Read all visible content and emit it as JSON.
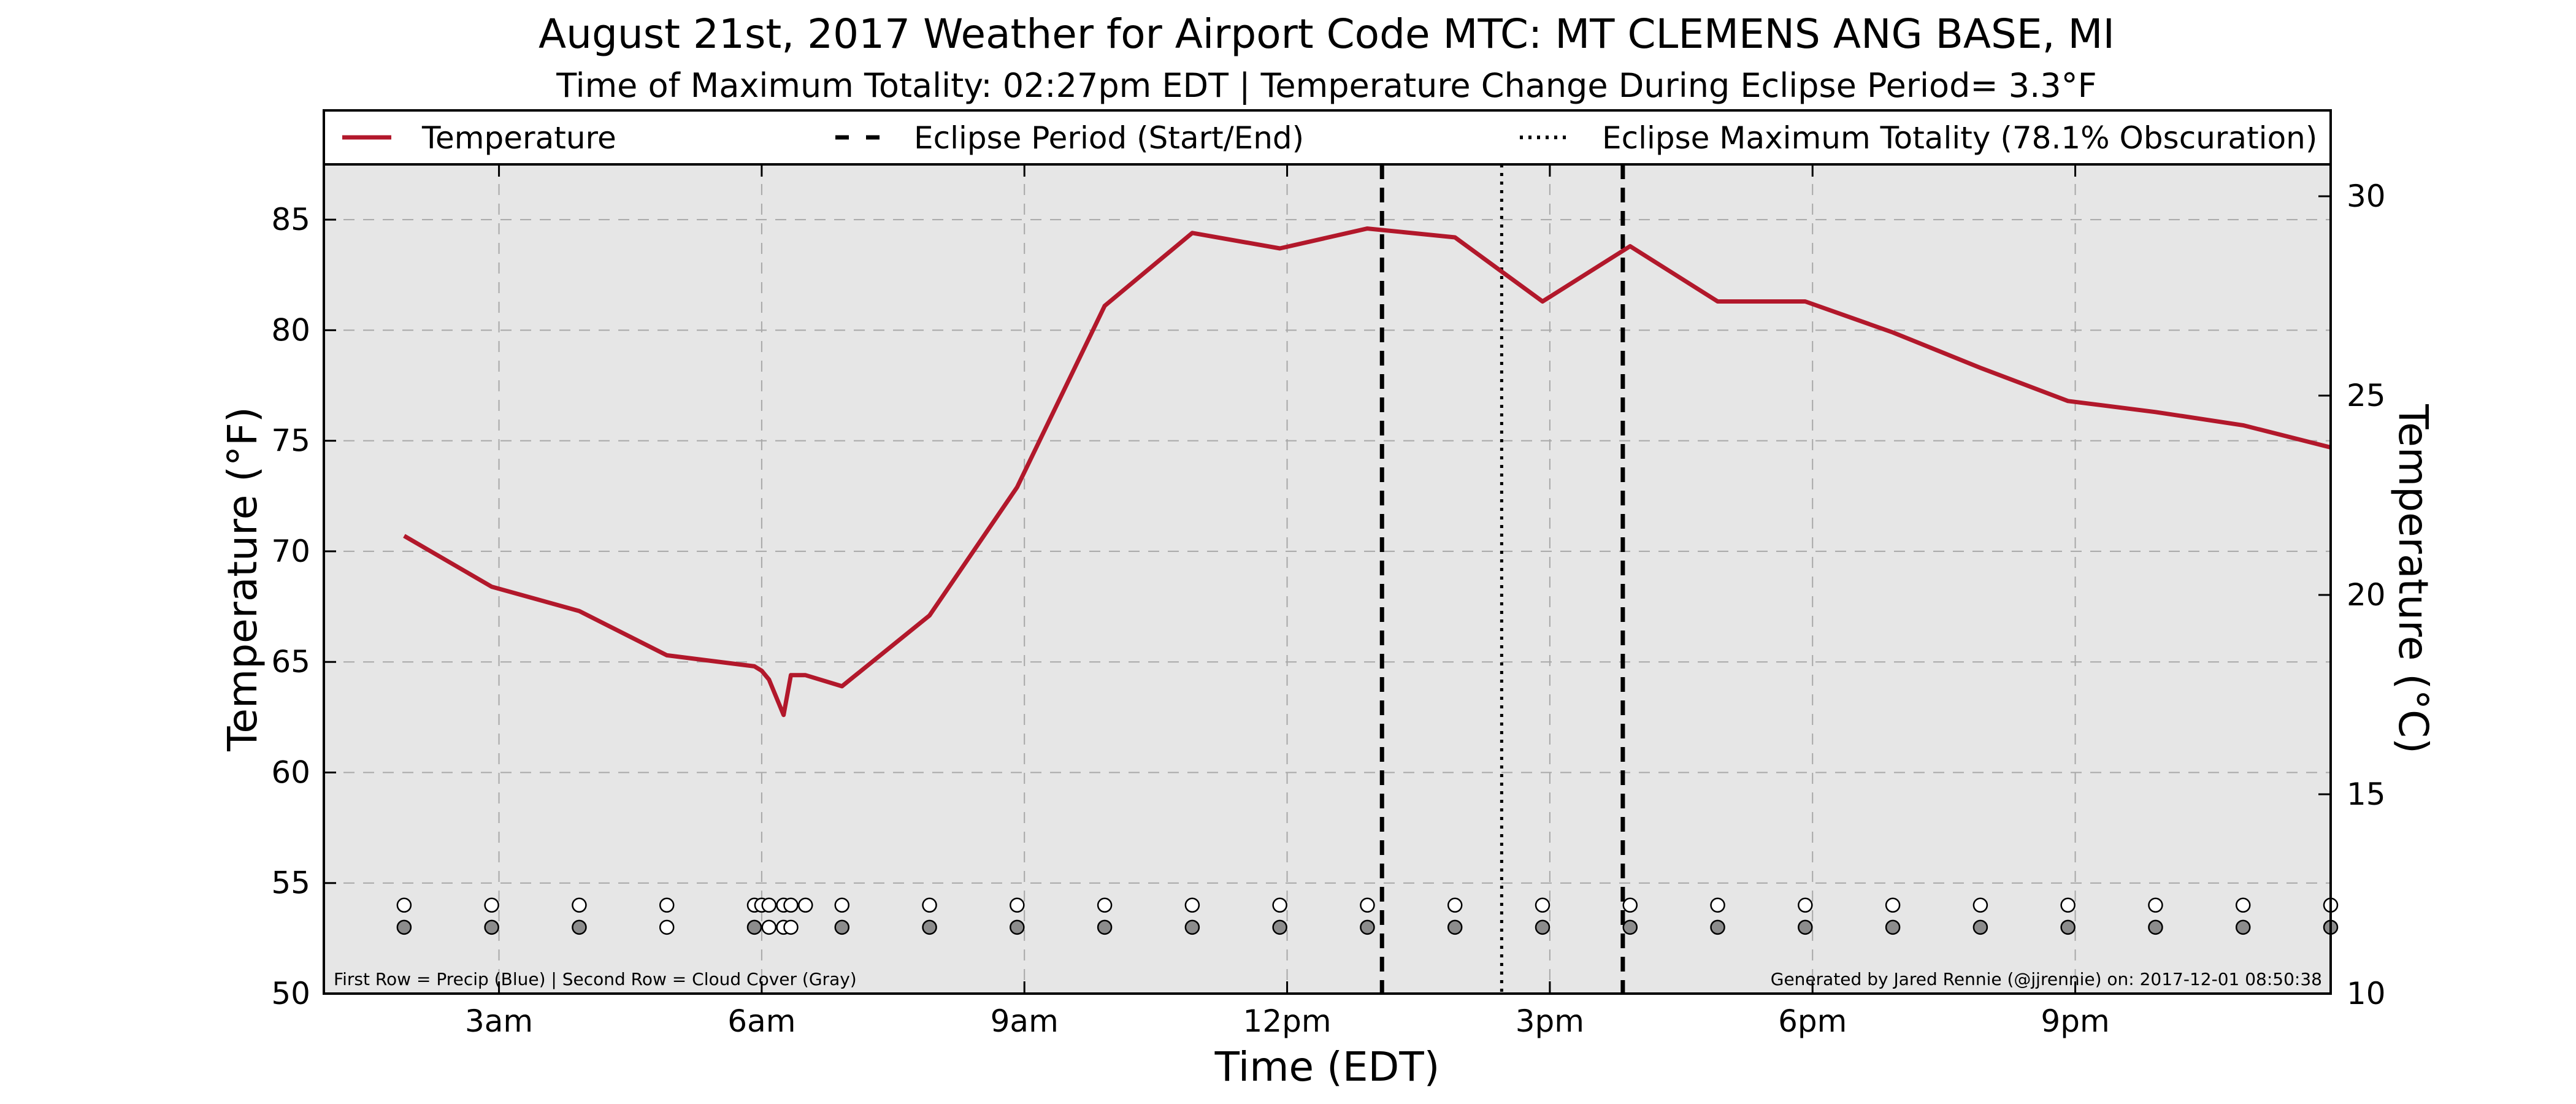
{
  "chart_data": {
    "type": "line",
    "title": "August 21st, 2017 Weather for Airport Code MTC: MT CLEMENS ANG BASE, MI",
    "subtitle": "Time of Maximum Totality: 02:27pm EDT | Temperature Change During Eclipse Period= 3.3°F",
    "xlabel": "Time (EDT)",
    "ylabel": "Temperature (°F)",
    "y2label": "Temperature (°C)",
    "xlim": [
      "01:00",
      "23:55"
    ],
    "ylim": [
      50,
      87.5
    ],
    "y2lim": [
      10,
      30.8
    ],
    "x_ticks": [
      "3am",
      "6am",
      "9am",
      "12pm",
      "3pm",
      "6pm",
      "9pm"
    ],
    "x_tick_times": [
      "03:00",
      "06:00",
      "09:00",
      "12:00",
      "15:00",
      "18:00",
      "21:00"
    ],
    "y_ticks": [
      50,
      55,
      60,
      65,
      70,
      75,
      80,
      85
    ],
    "y2_ticks": [
      10,
      15,
      20,
      25,
      30
    ],
    "grid": true,
    "legend_position": "top",
    "legend": [
      {
        "label": "Temperature",
        "style": "solid",
        "color": "#b2182b"
      },
      {
        "label": "Eclipse Period (Start/End)",
        "style": "dashed",
        "color": "#000000"
      },
      {
        "label": "Eclipse Maximum Totality (78.1% Obscuration)",
        "style": "dotted",
        "color": "#000000"
      }
    ],
    "series": [
      {
        "name": "Temperature",
        "color": "#b2182b",
        "points": [
          {
            "t": "01:55",
            "v": 70.7
          },
          {
            "t": "02:55",
            "v": 68.4
          },
          {
            "t": "03:55",
            "v": 67.3
          },
          {
            "t": "04:55",
            "v": 65.3
          },
          {
            "t": "05:55",
            "v": 64.8
          },
          {
            "t": "06:00",
            "v": 64.6
          },
          {
            "t": "06:05",
            "v": 64.2
          },
          {
            "t": "06:15",
            "v": 62.6
          },
          {
            "t": "06:20",
            "v": 64.4
          },
          {
            "t": "06:30",
            "v": 64.4
          },
          {
            "t": "06:55",
            "v": 63.9
          },
          {
            "t": "07:55",
            "v": 67.1
          },
          {
            "t": "08:55",
            "v": 72.9
          },
          {
            "t": "09:55",
            "v": 81.1
          },
          {
            "t": "10:55",
            "v": 84.4
          },
          {
            "t": "11:55",
            "v": 83.7
          },
          {
            "t": "12:55",
            "v": 84.6
          },
          {
            "t": "13:55",
            "v": 84.2
          },
          {
            "t": "14:55",
            "v": 81.3
          },
          {
            "t": "15:55",
            "v": 83.8
          },
          {
            "t": "16:55",
            "v": 81.3
          },
          {
            "t": "17:55",
            "v": 81.3
          },
          {
            "t": "18:55",
            "v": 79.9
          },
          {
            "t": "19:55",
            "v": 78.3
          },
          {
            "t": "20:55",
            "v": 76.8
          },
          {
            "t": "21:55",
            "v": 76.3
          },
          {
            "t": "22:55",
            "v": 75.7
          },
          {
            "t": "23:55",
            "v": 74.7
          }
        ]
      }
    ],
    "eclipse_start": "13:05",
    "eclipse_end": "15:50",
    "eclipse_max": "14:27",
    "precip_row": {
      "y": 54.0,
      "color": "#ffffff",
      "times": [
        "01:55",
        "02:55",
        "03:55",
        "04:55",
        "05:55",
        "06:00",
        "06:05",
        "06:15",
        "06:20",
        "06:30",
        "06:55",
        "07:55",
        "08:55",
        "09:55",
        "10:55",
        "11:55",
        "12:55",
        "13:55",
        "14:55",
        "15:55",
        "16:55",
        "17:55",
        "18:55",
        "19:55",
        "20:55",
        "21:55",
        "22:55",
        "23:55"
      ]
    },
    "cloud_row": {
      "y": 53.0,
      "color": "#8c8c8c",
      "times": [
        "01:55",
        "02:55",
        "03:55",
        "04:55",
        "05:55",
        "06:05",
        "06:15",
        "06:20",
        "06:55",
        "07:55",
        "08:55",
        "09:55",
        "10:55",
        "11:55",
        "12:55",
        "13:55",
        "14:55",
        "15:55",
        "16:55",
        "17:55",
        "18:55",
        "19:55",
        "20:55",
        "21:55",
        "22:55",
        "23:55"
      ],
      "hollow_times": [
        "04:55",
        "06:05",
        "06:15",
        "06:20"
      ]
    },
    "footnote_left": "First Row = Precip (Blue) | Second Row = Cloud Cover (Gray)",
    "footnote_right": "Generated by Jared Rennie (@jjrennie) on: 2017-12-01 08:50:38"
  },
  "colors": {
    "plot_background": "#e6e6e6",
    "grid": "#a8a8a8",
    "temperature": "#b2182b"
  }
}
